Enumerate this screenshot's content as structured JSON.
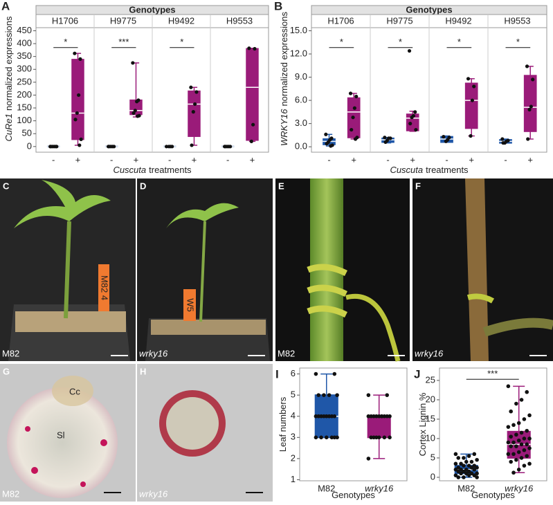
{
  "chart_data": [
    {
      "type": "box",
      "panel": "A",
      "facet_title": "Genotypes",
      "categories": [
        "-",
        "+"
      ],
      "colors": [
        "#1f57a8",
        "#9a1b79"
      ],
      "ylabel_italic": "CuRe1",
      "ylabel": "normalized expressions",
      "xlabel_italic": "Cuscuta",
      "xlabel": "treatments",
      "ylim": [
        -22,
        462
      ],
      "yticks": [
        0,
        50,
        100,
        150,
        200,
        250,
        300,
        350,
        400,
        450
      ],
      "facets": [
        {
          "name": "H1706",
          "sig": "*",
          "boxes": [
            {
              "stats": [
                0,
                0,
                0,
                0,
                0
              ],
              "points": [
                0,
                0,
                0,
                0,
                0,
                0
              ]
            },
            {
              "stats": [
                5,
                28,
                130,
                338,
                362
              ],
              "points": [
                362,
                340,
                200,
                130,
                105,
                28,
                5
              ]
            }
          ]
        },
        {
          "name": "H9775",
          "sig": "***",
          "boxes": [
            {
              "stats": [
                0,
                0,
                0,
                0,
                0
              ],
              "points": [
                0,
                0,
                0,
                0,
                0
              ]
            },
            {
              "stats": [
                115,
                125,
                140,
                180,
                325
              ],
              "points": [
                325,
                180,
                175,
                140,
                130,
                120,
                118
              ]
            }
          ]
        },
        {
          "name": "H9492",
          "sig": "*",
          "boxes": [
            {
              "stats": [
                0,
                0,
                0,
                0,
                0
              ],
              "points": [
                0,
                0,
                0,
                0
              ]
            },
            {
              "stats": [
                5,
                40,
                165,
                215,
                230
              ],
              "points": [
                230,
                212,
                165,
                135,
                5
              ]
            }
          ]
        },
        {
          "name": "H9553",
          "boxes": [
            {
              "stats": [
                0,
                0,
                0,
                0,
                0
              ],
              "points": [
                0,
                0,
                0,
                0,
                0
              ]
            },
            {
              "stats": [
                20,
                25,
                230,
                380,
                382
              ],
              "points": [
                382,
                380,
                85,
                20
              ]
            }
          ]
        }
      ]
    },
    {
      "type": "box",
      "panel": "B",
      "facet_title": "Genotypes",
      "categories": [
        "-",
        "+"
      ],
      "colors": [
        "#1f57a8",
        "#9a1b79"
      ],
      "ylabel_italic": "WRKY16",
      "ylabel": "normalized expressions",
      "xlabel_italic": "Cuscuta",
      "xlabel": "treatments",
      "ylim": [
        -0.7,
        15.4
      ],
      "yticks": [
        {
          "value": 0,
          "label": "0.0"
        },
        {
          "value": 3,
          "label": "3.0"
        },
        {
          "value": 6,
          "label": "6.0"
        },
        {
          "value": 9,
          "label": "9.0"
        },
        {
          "value": 12,
          "label": "12.0"
        },
        {
          "value": 15,
          "label": "15.0"
        }
      ],
      "facets": [
        {
          "name": "H1706",
          "sig": "*",
          "boxes": [
            {
              "stats": [
                0.1,
                0.3,
                0.7,
                1.0,
                1.6
              ],
              "points": [
                1.6,
                1.1,
                0.9,
                0.6,
                0.4,
                0.2,
                0.1
              ]
            },
            {
              "stats": [
                1.0,
                1.2,
                4.5,
                6.3,
                6.9
              ],
              "points": [
                6.9,
                6.5,
                5.0,
                3.8,
                2.2,
                1.2,
                1.0
              ]
            }
          ]
        },
        {
          "name": "H9775",
          "sig": "*",
          "boxes": [
            {
              "stats": [
                0.5,
                0.6,
                0.9,
                1.1,
                1.2
              ],
              "points": [
                1.2,
                1.1,
                1.1,
                0.8,
                0.6
              ]
            },
            {
              "stats": [
                2.0,
                2.1,
                3.7,
                4.2,
                4.6
              ],
              "points": [
                12.4,
                4.5,
                4.0,
                3.8,
                3.0,
                2.2
              ]
            }
          ]
        },
        {
          "name": "H9492",
          "sig": "*",
          "boxes": [
            {
              "stats": [
                0.6,
                0.6,
                1.0,
                1.3,
                1.4
              ],
              "points": [
                1.3,
                1.2,
                0.9,
                0.7
              ]
            },
            {
              "stats": [
                1.4,
                2.4,
                6.0,
                8.2,
                8.8
              ],
              "points": [
                8.8,
                7.8,
                6.0,
                1.4
              ]
            }
          ]
        },
        {
          "name": "H9553",
          "sig": "*",
          "boxes": [
            {
              "stats": [
                0.5,
                0.5,
                0.7,
                0.9,
                1.0
              ],
              "points": [
                1.0,
                0.8,
                0.7,
                0.5,
                0.5
              ]
            },
            {
              "stats": [
                1.0,
                2.0,
                5.1,
                9.2,
                10.4
              ],
              "points": [
                10.4,
                8.7,
                5.2,
                4.8,
                1.0
              ]
            }
          ]
        }
      ]
    },
    {
      "type": "box",
      "panel": "I",
      "categories": [
        "M82",
        "wrky16"
      ],
      "colors": [
        "#1f57a8",
        "#9a1b79"
      ],
      "ylabel": "Leaf numbers",
      "xlabel": "Genotypes",
      "ylim": [
        0.95,
        6.28
      ],
      "yticks": [
        1,
        2,
        3,
        4,
        5,
        6
      ],
      "facets": [
        {
          "boxes": [
            {
              "stats": [
                3,
                3,
                4,
                5,
                6
              ],
              "points": [
                6,
                6,
                5,
                5,
                5,
                5,
                4,
                4,
                4,
                4,
                4,
                4,
                4,
                4,
                3,
                3,
                3,
                3,
                3,
                3
              ]
            },
            {
              "stats": [
                2,
                3,
                4,
                4,
                5
              ],
              "points": [
                5,
                5,
                4,
                4,
                4,
                4,
                4,
                4,
                4,
                4,
                4,
                4,
                3,
                3,
                3,
                3,
                3,
                3,
                2
              ]
            }
          ]
        }
      ]
    },
    {
      "type": "box",
      "panel": "J",
      "categories": [
        "M82",
        "wrky16"
      ],
      "colors": [
        "#1f57a8",
        "#9a1b79"
      ],
      "ylabel": "Cortex Lignin %",
      "xlabel": "Genotypes",
      "ylim": [
        -0.9,
        28.2
      ],
      "yticks": [
        0,
        5,
        10,
        15,
        20,
        25
      ],
      "facets": [
        {
          "sig": "***",
          "boxes": [
            {
              "stats": [
                0,
                1,
                2,
                3,
                6
              ],
              "points": [
                6,
                6,
                5.5,
                5,
                5,
                4.5,
                4,
                4,
                3.5,
                3.5,
                3,
                3,
                3,
                2.5,
                2.5,
                2.5,
                2,
                2,
                2,
                2,
                1.5,
                1.5,
                1.5,
                1,
                1,
                1,
                1,
                0.5,
                0.5,
                0.5,
                0,
                0,
                0
              ]
            },
            {
              "stats": [
                1.2,
                5,
                8.5,
                11.8,
                23.5
              ],
              "points": [
                23.5,
                22,
                20,
                19,
                17,
                16,
                15,
                14,
                13.5,
                13,
                12,
                11.5,
                11,
                10.5,
                10,
                10,
                9.5,
                9,
                9,
                8.5,
                8.5,
                8,
                8,
                7.5,
                7,
                6.5,
                6,
                6,
                5.5,
                5,
                4.5,
                4,
                3.5,
                3,
                2,
                1.2
              ]
            }
          ]
        }
      ]
    }
  ],
  "photos": [
    {
      "panel": "C",
      "label": "M82",
      "tag": "M82 4"
    },
    {
      "panel": "D",
      "label": "wrky16",
      "tag": "W5"
    },
    {
      "panel": "E",
      "label": "M82"
    },
    {
      "panel": "F",
      "label": "wrky16"
    },
    {
      "panel": "G",
      "label": "M82",
      "annotations": [
        "Cc",
        "Sl"
      ]
    },
    {
      "panel": "H",
      "label": "wrky16"
    }
  ]
}
